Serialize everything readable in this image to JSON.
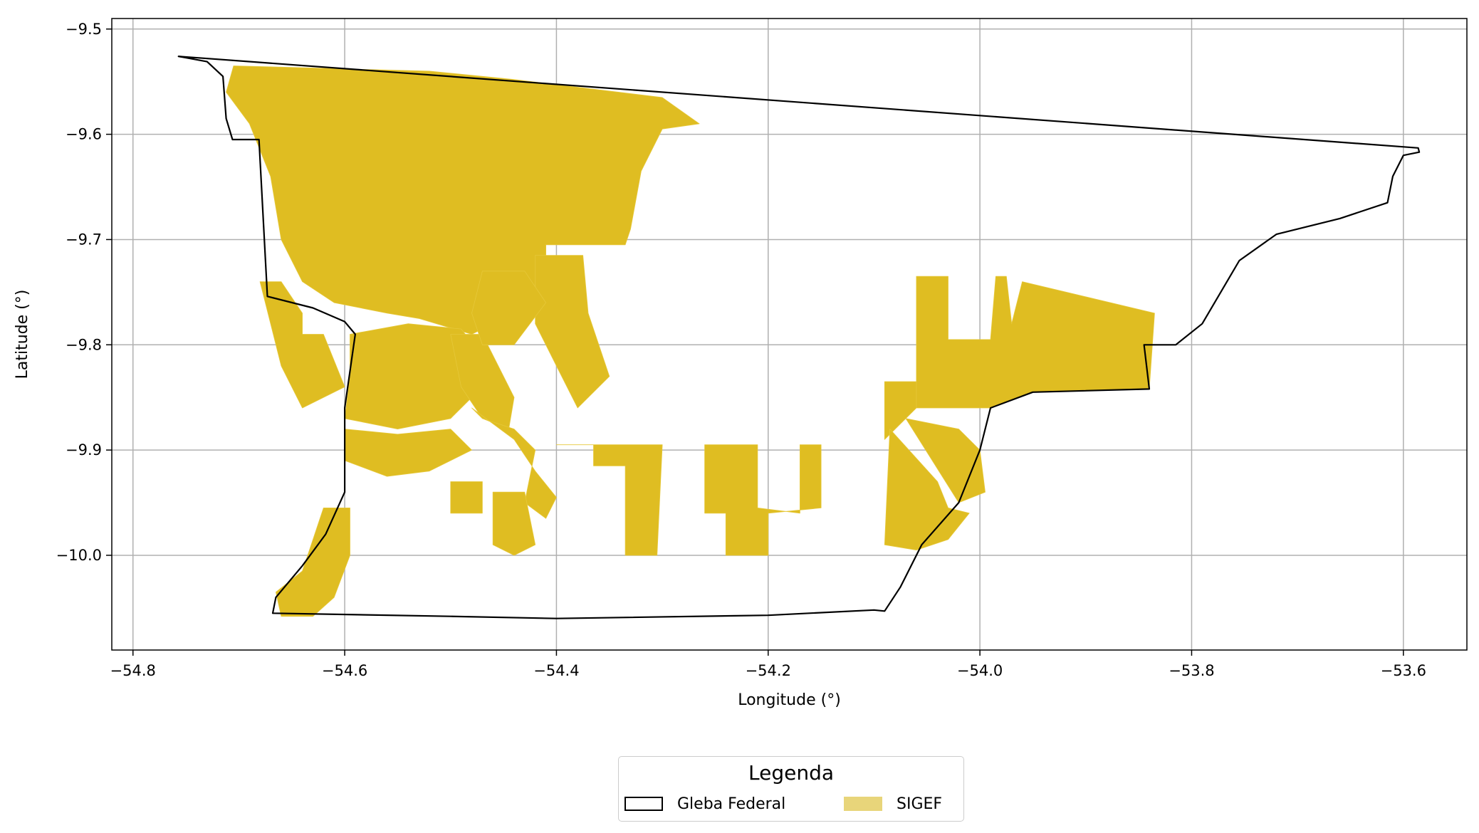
{
  "chart_data": {
    "type": "map",
    "xlabel": "Longitude (°)",
    "ylabel": "Latitude (°)",
    "xlim": [
      -54.82,
      -53.54
    ],
    "ylim": [
      -10.09,
      -9.49
    ],
    "x_ticks": [
      -54.8,
      -54.6,
      -54.4,
      -54.2,
      -54.0,
      -53.8,
      -53.6
    ],
    "x_tick_labels": [
      "−54.8",
      "−54.6",
      "−54.4",
      "−54.2",
      "−54.0",
      "−53.8",
      "−53.6"
    ],
    "y_ticks": [
      -9.5,
      -9.6,
      -9.7,
      -9.8,
      -9.9,
      -10.0
    ],
    "y_tick_labels": [
      "−9.5",
      "−9.6",
      "−9.7",
      "−9.8",
      "−9.9",
      "−10.0"
    ],
    "grid": true,
    "layers": [
      {
        "name": "Gleba Federal",
        "style": "outline",
        "color": "#000000",
        "boundary": [
          [
            -54.757,
            -9.526
          ],
          [
            -54.73,
            -9.531
          ],
          [
            -54.715,
            -9.545
          ],
          [
            -54.712,
            -9.585
          ],
          [
            -54.706,
            -9.605
          ],
          [
            -54.681,
            -9.605
          ],
          [
            -54.673,
            -9.754
          ],
          [
            -54.63,
            -9.765
          ],
          [
            -54.6,
            -9.778
          ],
          [
            -54.59,
            -9.79
          ],
          [
            -54.6,
            -9.86
          ],
          [
            -54.6,
            -9.94
          ],
          [
            -54.618,
            -9.98
          ],
          [
            -54.64,
            -10.01
          ],
          [
            -54.665,
            -10.04
          ],
          [
            -54.668,
            -10.055
          ],
          [
            -54.5,
            -10.058
          ],
          [
            -54.4,
            -10.06
          ],
          [
            -54.2,
            -10.057
          ],
          [
            -54.1,
            -10.052
          ],
          [
            -54.09,
            -10.053
          ],
          [
            -54.075,
            -10.03
          ],
          [
            -54.055,
            -9.99
          ],
          [
            -54.02,
            -9.95
          ],
          [
            -54.0,
            -9.9
          ],
          [
            -53.99,
            -9.86
          ],
          [
            -53.95,
            -9.845
          ],
          [
            -53.84,
            -9.842
          ],
          [
            -53.845,
            -9.8
          ],
          [
            -53.815,
            -9.8
          ],
          [
            -53.79,
            -9.78
          ],
          [
            -53.755,
            -9.72
          ],
          [
            -53.72,
            -9.695
          ],
          [
            -53.66,
            -9.68
          ],
          [
            -53.615,
            -9.665
          ],
          [
            -53.61,
            -9.64
          ],
          [
            -53.6,
            -9.62
          ],
          [
            -53.585,
            -9.617
          ],
          [
            -53.586,
            -9.613
          ],
          [
            -54.757,
            -9.526
          ]
        ]
      },
      {
        "name": "SIGEF",
        "style": "fill",
        "color": "#dfbd22",
        "legend_color": "#e8d57a",
        "polygons": [
          [
            [
              -54.705,
              -9.535
            ],
            [
              -54.52,
              -9.54
            ],
            [
              -54.44,
              -9.548
            ],
            [
              -54.3,
              -9.565
            ],
            [
              -54.265,
              -9.59
            ],
            [
              -54.3,
              -9.595
            ],
            [
              -54.32,
              -9.635
            ],
            [
              -54.33,
              -9.69
            ],
            [
              -54.335,
              -9.705
            ],
            [
              -54.395,
              -9.705
            ],
            [
              -54.41,
              -9.705
            ],
            [
              -54.41,
              -9.735
            ],
            [
              -54.43,
              -9.765
            ],
            [
              -54.48,
              -9.79
            ],
            [
              -54.53,
              -9.775
            ],
            [
              -54.56,
              -9.77
            ],
            [
              -54.61,
              -9.76
            ],
            [
              -54.64,
              -9.74
            ],
            [
              -54.66,
              -9.7
            ],
            [
              -54.67,
              -9.64
            ],
            [
              -54.69,
              -9.59
            ],
            [
              -54.712,
              -9.56
            ]
          ],
          [
            [
              -54.595,
              -9.79
            ],
            [
              -54.54,
              -9.78
            ],
            [
              -54.49,
              -9.785
            ],
            [
              -54.47,
              -9.81
            ],
            [
              -54.48,
              -9.85
            ],
            [
              -54.5,
              -9.87
            ],
            [
              -54.55,
              -9.88
            ],
            [
              -54.6,
              -9.87
            ],
            [
              -54.595,
              -9.83
            ]
          ],
          [
            [
              -54.6,
              -9.88
            ],
            [
              -54.55,
              -9.885
            ],
            [
              -54.5,
              -9.88
            ],
            [
              -54.48,
              -9.9
            ],
            [
              -54.52,
              -9.92
            ],
            [
              -54.56,
              -9.925
            ],
            [
              -54.6,
              -9.91
            ]
          ],
          [
            [
              -54.5,
              -9.79
            ],
            [
              -54.47,
              -9.79
            ],
            [
              -54.44,
              -9.85
            ],
            [
              -54.445,
              -9.88
            ],
            [
              -54.47,
              -9.87
            ],
            [
              -54.49,
              -9.84
            ]
          ],
          [
            [
              -54.47,
              -9.87
            ],
            [
              -54.44,
              -9.88
            ],
            [
              -54.42,
              -9.9
            ],
            [
              -54.43,
              -9.95
            ],
            [
              -54.41,
              -9.965
            ],
            [
              -54.4,
              -9.945
            ],
            [
              -54.42,
              -9.92
            ],
            [
              -54.44,
              -9.89
            ],
            [
              -54.48,
              -9.86
            ]
          ],
          [
            [
              -54.42,
              -9.715
            ],
            [
              -54.375,
              -9.715
            ],
            [
              -54.37,
              -9.77
            ],
            [
              -54.35,
              -9.83
            ],
            [
              -54.38,
              -9.86
            ],
            [
              -54.4,
              -9.82
            ],
            [
              -54.42,
              -9.78
            ]
          ],
          [
            [
              -54.47,
              -9.73
            ],
            [
              -54.43,
              -9.73
            ],
            [
              -54.41,
              -9.76
            ],
            [
              -54.44,
              -9.8
            ],
            [
              -54.47,
              -9.8
            ],
            [
              -54.48,
              -9.77
            ]
          ],
          [
            [
              -54.46,
              -9.94
            ],
            [
              -54.43,
              -9.94
            ],
            [
              -54.42,
              -9.99
            ],
            [
              -54.44,
              -10.0
            ],
            [
              -54.46,
              -9.99
            ]
          ],
          [
            [
              -54.5,
              -9.93
            ],
            [
              -54.47,
              -9.93
            ],
            [
              -54.47,
              -9.96
            ],
            [
              -54.5,
              -9.96
            ]
          ],
          [
            [
              -54.4,
              -9.895
            ],
            [
              -54.365,
              -9.895
            ],
            [
              -54.365,
              -9.915
            ],
            [
              -54.335,
              -9.915
            ],
            [
              -54.335,
              -10.0
            ],
            [
              -54.305,
              -10.0
            ],
            [
              -54.3,
              -9.895
            ]
          ],
          [
            [
              -54.26,
              -9.895
            ],
            [
              -54.21,
              -9.895
            ],
            [
              -54.21,
              -9.955
            ],
            [
              -54.17,
              -9.96
            ],
            [
              -54.17,
              -9.895
            ],
            [
              -54.15,
              -9.895
            ],
            [
              -54.15,
              -9.955
            ],
            [
              -54.2,
              -9.96
            ],
            [
              -54.2,
              -10.0
            ],
            [
              -54.24,
              -10.0
            ],
            [
              -54.24,
              -9.96
            ],
            [
              -54.26,
              -9.96
            ]
          ],
          [
            [
              -54.06,
              -9.735
            ],
            [
              -54.03,
              -9.735
            ],
            [
              -54.03,
              -9.795
            ],
            [
              -53.99,
              -9.795
            ],
            [
              -53.985,
              -9.735
            ],
            [
              -53.975,
              -9.735
            ],
            [
              -53.97,
              -9.78
            ],
            [
              -53.96,
              -9.74
            ],
            [
              -53.835,
              -9.77
            ],
            [
              -53.84,
              -9.842
            ],
            [
              -53.95,
              -9.845
            ],
            [
              -53.99,
              -9.86
            ],
            [
              -54.06,
              -9.86
            ],
            [
              -54.06,
              -9.835
            ],
            [
              -54.09,
              -9.835
            ],
            [
              -54.09,
              -9.89
            ],
            [
              -54.06,
              -9.86
            ]
          ],
          [
            [
              -54.07,
              -9.87
            ],
            [
              -54.02,
              -9.88
            ],
            [
              -54.0,
              -9.9
            ],
            [
              -53.995,
              -9.94
            ],
            [
              -54.02,
              -9.95
            ]
          ],
          [
            [
              -54.085,
              -9.88
            ],
            [
              -54.09,
              -9.99
            ],
            [
              -54.06,
              -9.995
            ],
            [
              -54.03,
              -9.985
            ],
            [
              -54.01,
              -9.96
            ],
            [
              -54.03,
              -9.955
            ],
            [
              -54.04,
              -9.93
            ]
          ],
          [
            [
              -54.68,
              -9.74
            ],
            [
              -54.66,
              -9.74
            ],
            [
              -54.64,
              -9.77
            ],
            [
              -54.64,
              -9.79
            ],
            [
              -54.62,
              -9.79
            ],
            [
              -54.6,
              -9.84
            ],
            [
              -54.64,
              -9.86
            ],
            [
              -54.66,
              -9.82
            ],
            [
              -54.67,
              -9.78
            ]
          ],
          [
            [
              -54.62,
              -9.955
            ],
            [
              -54.595,
              -9.955
            ],
            [
              -54.595,
              -10.0
            ],
            [
              -54.61,
              -10.04
            ],
            [
              -54.63,
              -10.058
            ],
            [
              -54.66,
              -10.058
            ],
            [
              -54.665,
              -10.035
            ],
            [
              -54.64,
              -10.015
            ],
            [
              -54.63,
              -9.985
            ]
          ]
        ]
      }
    ],
    "legend": {
      "title": "Legenda",
      "placement": "lower-center-outside",
      "entries": [
        {
          "label": "Gleba Federal",
          "style": "outline",
          "color": "#000000"
        },
        {
          "label": "SIGEF",
          "style": "fill",
          "color": "#e8d57a"
        }
      ]
    },
    "colors": {
      "sigef": "#dfbd22",
      "sigef_legend": "#e8d57a",
      "boundary": "#000000",
      "grid": "#b0b0b0"
    }
  }
}
